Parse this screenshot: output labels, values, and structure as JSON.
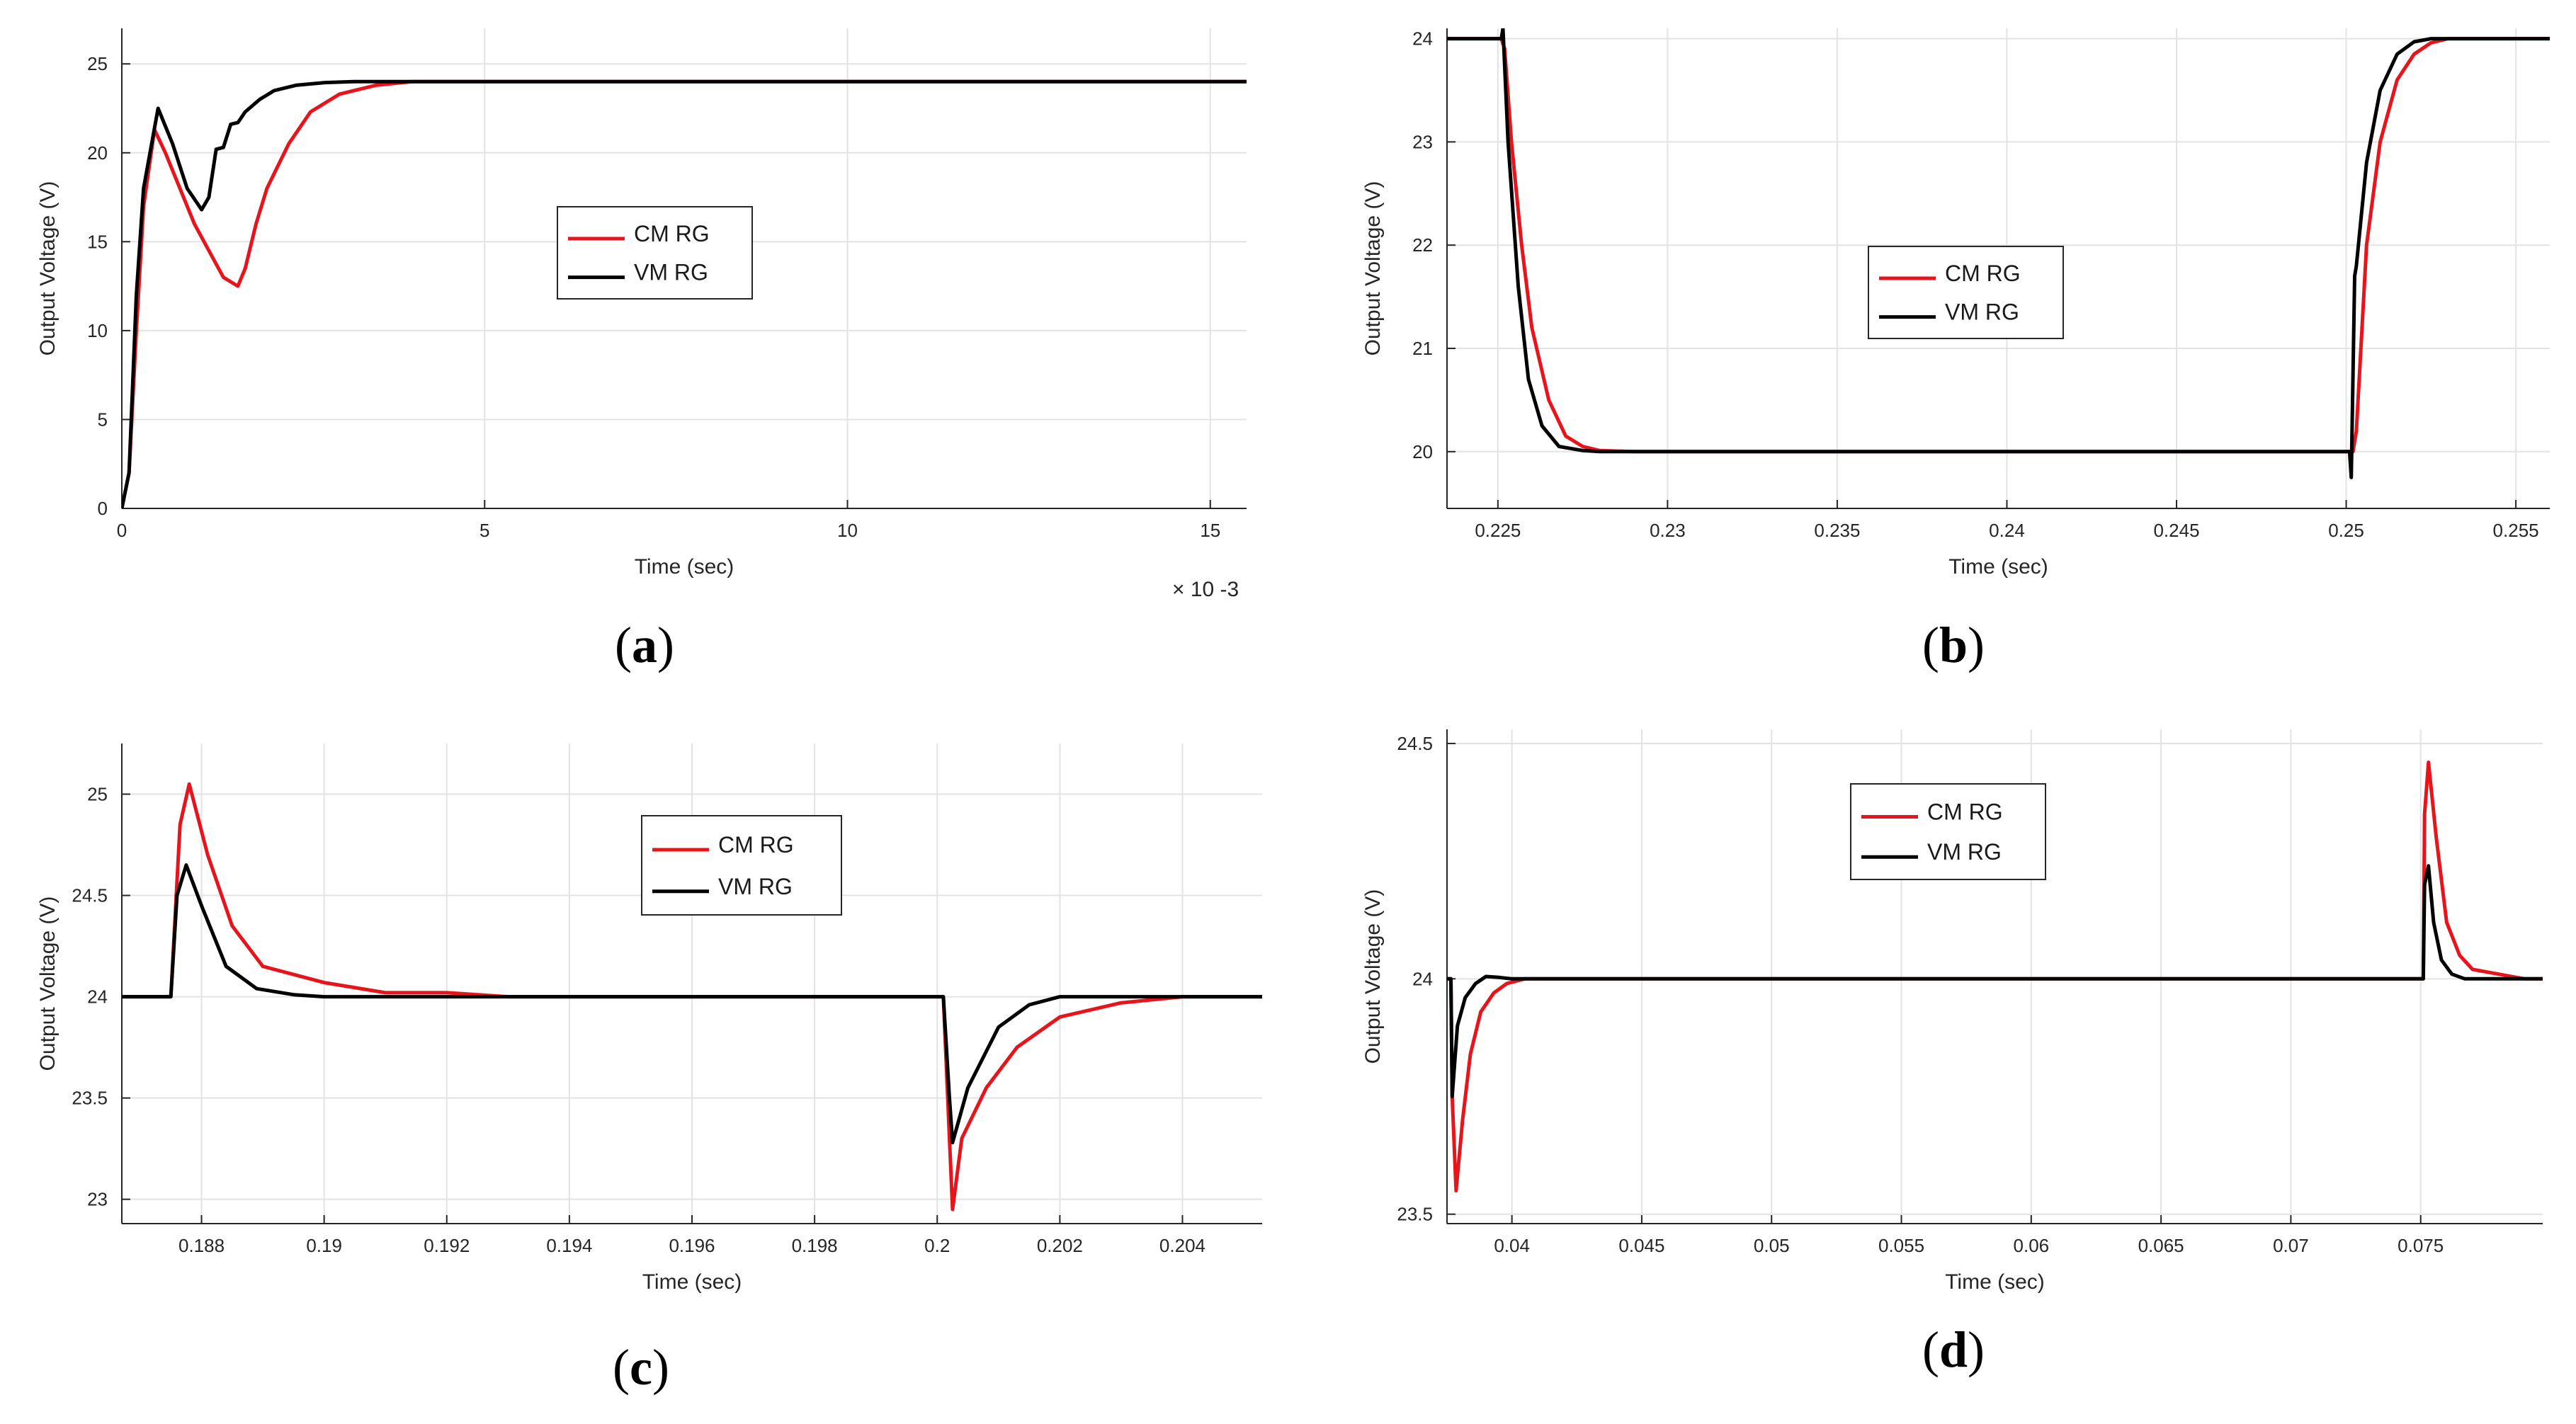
{
  "chart_data": [
    {
      "panel": "a",
      "panel_label": "a",
      "type": "line",
      "title": "",
      "xlabel": "Time (sec)",
      "ylabel": "Output Voltage (V)",
      "x_exponent_label": "× 10 -3",
      "xlim": [
        0,
        15.5
      ],
      "ylim": [
        0,
        27
      ],
      "xticks": [
        0,
        5,
        10,
        15
      ],
      "xtick_labels": [
        "0",
        "5",
        "10",
        "15"
      ],
      "yticks": [
        0,
        5,
        10,
        15,
        20,
        25
      ],
      "ytick_labels": [
        "0",
        "5",
        "10",
        "15",
        "20",
        "25"
      ],
      "grid": true,
      "legend": {
        "position": "center",
        "entries": [
          "CM RG",
          "VM RG"
        ]
      },
      "series": [
        {
          "name": "CM RG",
          "color": "#e8141c",
          "x": [
            0,
            0.1,
            0.2,
            0.3,
            0.45,
            0.6,
            0.8,
            1.0,
            1.2,
            1.4,
            1.6,
            1.7,
            1.85,
            2.0,
            2.3,
            2.6,
            3.0,
            3.5,
            4.0,
            4.5,
            5,
            15.5
          ],
          "y": [
            0,
            2,
            10,
            17,
            21.3,
            20,
            18,
            16,
            14.5,
            13,
            12.5,
            13.5,
            16,
            18,
            20.5,
            22.3,
            23.3,
            23.8,
            24,
            24,
            24,
            24
          ]
        },
        {
          "name": "VM RG",
          "color": "#000000",
          "x": [
            0,
            0.1,
            0.2,
            0.3,
            0.5,
            0.7,
            0.9,
            1.1,
            1.2,
            1.3,
            1.4,
            1.5,
            1.6,
            1.7,
            1.9,
            2.1,
            2.4,
            2.8,
            3.2,
            4.0,
            15.5
          ],
          "y": [
            0,
            2,
            12,
            18,
            22.5,
            20.5,
            18,
            16.8,
            17.5,
            20.2,
            20.3,
            21.6,
            21.7,
            22.3,
            23,
            23.5,
            23.8,
            23.95,
            24,
            24,
            24
          ]
        }
      ]
    },
    {
      "panel": "b",
      "panel_label": "b",
      "type": "line",
      "title": "",
      "xlabel": "Time (sec)",
      "ylabel": "Output Voltage (V)",
      "xlim": [
        0.2235,
        0.256
      ],
      "ylim": [
        19.45,
        24.1
      ],
      "xticks": [
        0.225,
        0.23,
        0.235,
        0.24,
        0.245,
        0.25,
        0.255
      ],
      "xtick_labels": [
        "0.225",
        "0.23",
        "0.235",
        "0.24",
        "0.245",
        "0.25",
        "0.255"
      ],
      "yticks": [
        20,
        21,
        22,
        23,
        24
      ],
      "ytick_labels": [
        "20",
        "21",
        "22",
        "23",
        "24"
      ],
      "grid": true,
      "legend": {
        "position": "center",
        "entries": [
          "CM RG",
          "VM RG"
        ]
      },
      "series": [
        {
          "name": "CM RG",
          "color": "#e8141c",
          "x": [
            0.2235,
            0.2251,
            0.2252,
            0.2254,
            0.2257,
            0.226,
            0.2265,
            0.227,
            0.2275,
            0.228,
            0.229,
            0.2502,
            0.2503,
            0.2506,
            0.251,
            0.2515,
            0.252,
            0.2525,
            0.253,
            0.256
          ],
          "y": [
            24,
            24,
            23.9,
            23.0,
            22.0,
            21.2,
            20.5,
            20.15,
            20.05,
            20.01,
            20,
            20,
            20.2,
            22.0,
            23.0,
            23.6,
            23.85,
            23.96,
            24,
            24
          ]
        },
        {
          "name": "VM RG",
          "color": "#000000",
          "x": [
            0.2235,
            0.2251,
            0.22515,
            0.2253,
            0.2256,
            0.2259,
            0.2263,
            0.2268,
            0.2275,
            0.228,
            0.2501,
            0.25015,
            0.25025,
            0.2503,
            0.2506,
            0.251,
            0.2515,
            0.252,
            0.2525,
            0.256
          ],
          "y": [
            24,
            24,
            24.1,
            23.0,
            21.6,
            20.7,
            20.25,
            20.05,
            20.01,
            20,
            20,
            19.75,
            21.7,
            21.8,
            22.8,
            23.5,
            23.85,
            23.97,
            24,
            24
          ]
        }
      ]
    },
    {
      "panel": "c",
      "panel_label": "c",
      "type": "line",
      "title": "",
      "xlabel": "Time (sec)",
      "ylabel": "Output Voltage (V)",
      "xlim": [
        0.1867,
        0.2053
      ],
      "ylim": [
        22.88,
        25.25
      ],
      "xticks": [
        0.188,
        0.19,
        0.192,
        0.194,
        0.196,
        0.198,
        0.2,
        0.202,
        0.204
      ],
      "xtick_labels": [
        "0.188",
        "0.19",
        "0.192",
        "0.194",
        "0.196",
        "0.198",
        "0.2",
        "0.202",
        "0.204"
      ],
      "yticks": [
        23,
        23.5,
        24,
        24.5,
        25
      ],
      "ytick_labels": [
        "23",
        "23.5",
        "24",
        "24.5",
        "25"
      ],
      "grid": true,
      "legend": {
        "position": "center",
        "entries": [
          "CM RG",
          "VM RG"
        ]
      },
      "series": [
        {
          "name": "CM RG",
          "color": "#e8141c",
          "x": [
            0.1867,
            0.1875,
            0.18765,
            0.1878,
            0.1881,
            0.1885,
            0.189,
            0.19,
            0.191,
            0.192,
            0.193,
            0.195,
            0.199,
            0.2001,
            0.2002,
            0.20025,
            0.2004,
            0.2008,
            0.2013,
            0.202,
            0.203,
            0.204,
            0.2053
          ],
          "y": [
            24,
            24,
            24.85,
            25.05,
            24.7,
            24.35,
            24.15,
            24.07,
            24.02,
            24.02,
            24,
            24,
            24,
            24,
            23.3,
            22.95,
            23.3,
            23.55,
            23.75,
            23.9,
            23.97,
            24,
            24
          ]
        },
        {
          "name": "VM RG",
          "color": "#000000",
          "x": [
            0.1867,
            0.1875,
            0.1876,
            0.18775,
            0.188,
            0.1884,
            0.1889,
            0.1895,
            0.19,
            0.2001,
            0.2002,
            0.20025,
            0.2005,
            0.201,
            0.2015,
            0.202,
            0.2025,
            0.2053
          ],
          "y": [
            24,
            24,
            24.5,
            24.65,
            24.45,
            24.15,
            24.04,
            24.01,
            24,
            24,
            23.5,
            23.28,
            23.55,
            23.85,
            23.96,
            24,
            24,
            24
          ]
        }
      ]
    },
    {
      "panel": "d",
      "panel_label": "d",
      "type": "line",
      "title": "",
      "xlabel": "Time (sec)",
      "ylabel": "Output Voltage (V)",
      "xlim": [
        0.0375,
        0.0797
      ],
      "ylim": [
        23.48,
        24.53
      ],
      "xticks": [
        0.04,
        0.045,
        0.05,
        0.055,
        0.06,
        0.065,
        0.07,
        0.075
      ],
      "xtick_labels": [
        "0.04",
        "0.045",
        "0.05",
        "0.055",
        "0.06",
        "0.065",
        "0.07",
        "0.075"
      ],
      "yticks": [
        23.5,
        24,
        24.5
      ],
      "ytick_labels": [
        "23.5",
        "24",
        "24.5"
      ],
      "grid": true,
      "legend": {
        "position": "top-center",
        "entries": [
          "CM RG",
          "VM RG"
        ]
      },
      "series": [
        {
          "name": "CM RG",
          "color": "#e8141c",
          "x": [
            0.0375,
            0.03765,
            0.0377,
            0.03785,
            0.0381,
            0.0384,
            0.0388,
            0.0393,
            0.0398,
            0.0405,
            0.042,
            0.0751,
            0.07515,
            0.0753,
            0.0756,
            0.076,
            0.0765,
            0.077,
            0.078,
            0.079,
            0.0797
          ],
          "y": [
            24,
            24,
            23.75,
            23.55,
            23.7,
            23.84,
            23.93,
            23.97,
            23.99,
            24,
            24,
            24,
            24.35,
            24.46,
            24.3,
            24.12,
            24.05,
            24.02,
            24.01,
            24,
            24
          ]
        },
        {
          "name": "VM RG",
          "color": "#000000",
          "x": [
            0.0375,
            0.03765,
            0.0377,
            0.0379,
            0.0382,
            0.0386,
            0.039,
            0.0395,
            0.04,
            0.0751,
            0.07515,
            0.0753,
            0.0755,
            0.0758,
            0.0762,
            0.0767,
            0.0772,
            0.0797
          ],
          "y": [
            24,
            24,
            23.75,
            23.9,
            23.96,
            23.99,
            24.005,
            24.003,
            24,
            24,
            24.2,
            24.24,
            24.12,
            24.04,
            24.01,
            24,
            24,
            24
          ]
        }
      ]
    }
  ]
}
